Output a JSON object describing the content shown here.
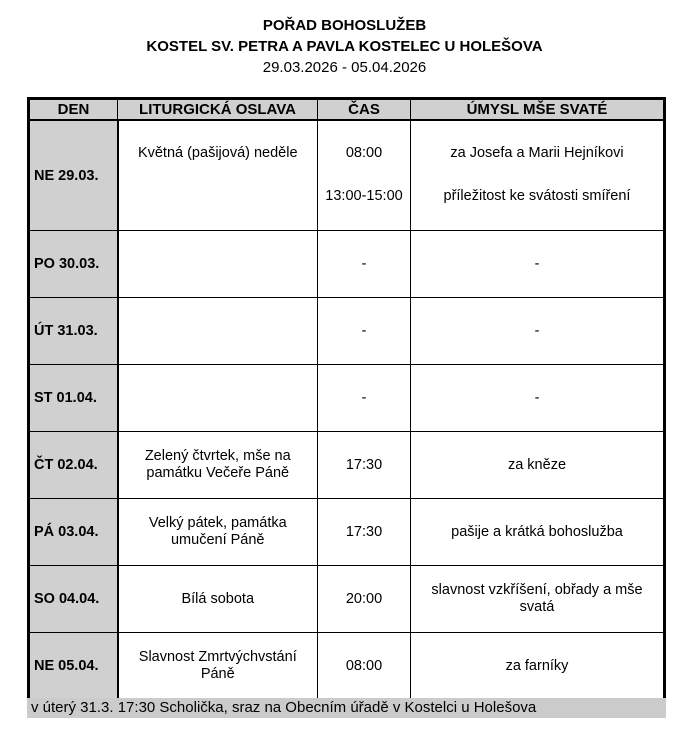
{
  "header": {
    "title": "POŘAD BOHOSLUŽEB",
    "church": "KOSTEL SV. PETRA A PAVLA KOSTELEC U HOLEŠOVA",
    "date_range": "29.03.2026 - 05.04.2026"
  },
  "table": {
    "columns": [
      "DEN",
      "LITURGICKÁ OSLAVA",
      "ČAS",
      "ÚMYSL MŠE SVATÉ"
    ],
    "rows": [
      {
        "day": "NE  29.03.",
        "liturgy": "Květná (pašijová) neděle",
        "times": [
          "08:00",
          "13:00-15:00"
        ],
        "intentions": [
          "za Josefa a Marii Hejníkovi",
          "příležitost ke svátosti smíření"
        ]
      },
      {
        "day": "PO  30.03.",
        "liturgy": "",
        "times": [
          "-"
        ],
        "intentions": [
          "-"
        ]
      },
      {
        "day": "ÚT  31.03.",
        "liturgy": "",
        "times": [
          "-"
        ],
        "intentions": [
          "-"
        ]
      },
      {
        "day": "ST  01.04.",
        "liturgy": "",
        "times": [
          "-"
        ],
        "intentions": [
          "-"
        ]
      },
      {
        "day": "ČT  02.04.",
        "liturgy": "Zelený čtvrtek, mše na památku Večeře Páně",
        "times": [
          "17:30"
        ],
        "intentions": [
          "za kněze"
        ]
      },
      {
        "day": "PÁ  03.04.",
        "liturgy": "Velký pátek, památka umučení Páně",
        "times": [
          "17:30"
        ],
        "intentions": [
          "pašije a krátká bohoslužba"
        ]
      },
      {
        "day": "SO  04.04.",
        "liturgy": "Bílá sobota",
        "times": [
          "20:00"
        ],
        "intentions": [
          "slavnost vzkříšení, obřady a mše svatá"
        ]
      },
      {
        "day": "NE  05.04.",
        "liturgy": "Slavnost Zmrtvýchvstání Páně",
        "times": [
          "08:00"
        ],
        "intentions": [
          "za farníky"
        ]
      }
    ]
  },
  "note": "v úterý 31.3. 17:30 Scholička,  sraz na Obecním úřadě v Kostelci u Holešova"
}
